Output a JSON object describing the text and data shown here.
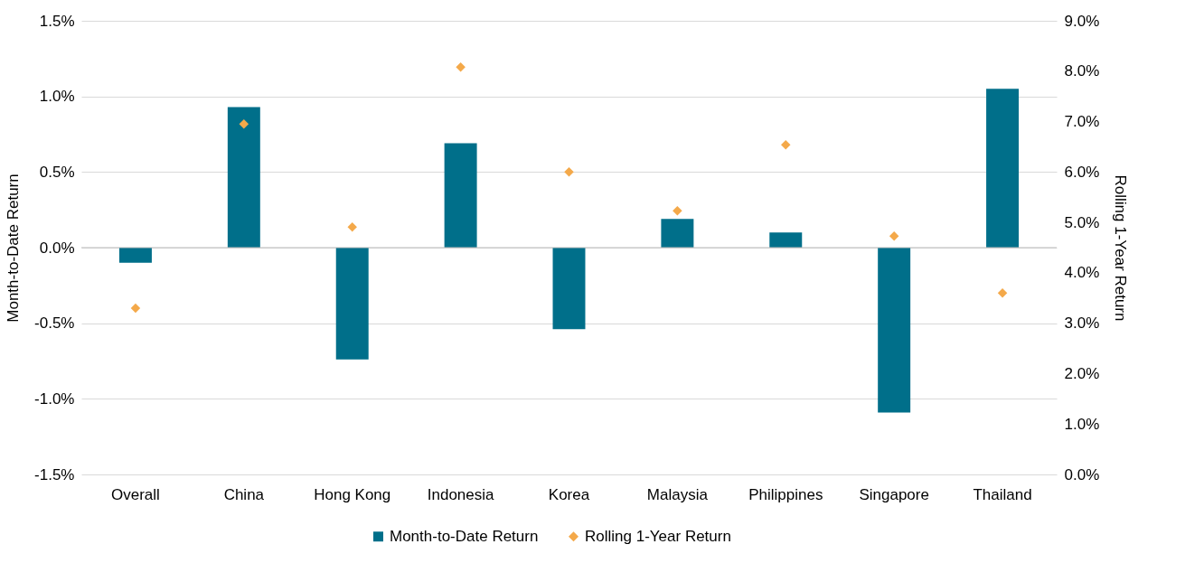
{
  "chart_data": {
    "type": "bar",
    "categories": [
      "Overall",
      "China",
      "Hong Kong",
      "Indonesia",
      "Korea",
      "Malaysia",
      "Philippines",
      "Singapore",
      "Thailand"
    ],
    "series": [
      {
        "name": "Month-to-Date Return",
        "color": "#006f8a",
        "values": [
          -0.1,
          0.93,
          -0.74,
          0.69,
          -0.54,
          0.19,
          0.1,
          -1.09,
          1.05
        ]
      },
      {
        "name": "Rolling 1-Year Return",
        "type": "scatter",
        "axis": "y2",
        "color": "#f4a94a",
        "values": [
          3.3,
          6.95,
          4.91,
          8.08,
          6.0,
          5.23,
          6.54,
          4.73,
          3.6
        ]
      }
    ],
    "ylabel": "Month-to-Date Return",
    "y2label": "Rolling 1-Year Return",
    "ylim": [
      -1.5,
      1.5
    ],
    "yticks": [
      {
        "value": -1.5,
        "label": "-1.5%"
      },
      {
        "value": -1.0,
        "label": "-1.0%"
      },
      {
        "value": -0.5,
        "label": "-0.5%"
      },
      {
        "value": 0,
        "label": "0.0%"
      },
      {
        "value": 0.5,
        "label": "0.5%"
      },
      {
        "value": 1.0,
        "label": "1.0%"
      },
      {
        "value": 1.5,
        "label": "1.5%"
      }
    ],
    "y2lim": [
      0,
      9
    ],
    "y2ticks": [
      {
        "value": 0,
        "label": "0.0%"
      },
      {
        "value": 1,
        "label": "1.0%"
      },
      {
        "value": 2,
        "label": "2.0%"
      },
      {
        "value": 3,
        "label": "3.0%"
      },
      {
        "value": 4,
        "label": "4.0%"
      },
      {
        "value": 5,
        "label": "5.0%"
      },
      {
        "value": 6,
        "label": "6.0%"
      },
      {
        "value": 7,
        "label": "7.0%"
      },
      {
        "value": 8,
        "label": "8.0%"
      },
      {
        "value": 9,
        "label": "9.0%"
      }
    ],
    "grid": "y",
    "legend": "bottom",
    "marker": "diamond"
  }
}
